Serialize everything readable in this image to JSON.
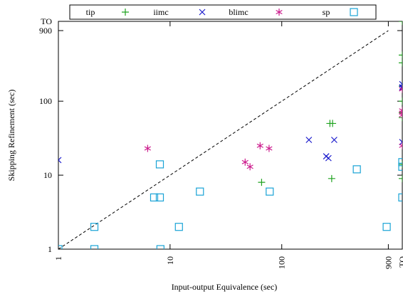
{
  "chart_data": {
    "type": "scatter",
    "xlabel": "Input-output Equivalence (sec)",
    "ylabel": "Skipping Refinement (sec)",
    "xscale": "log",
    "yscale": "log",
    "xlim": [
      1,
      1200
    ],
    "ylim": [
      1,
      1200
    ],
    "x_ticks": [
      {
        "value": 1,
        "label": "1"
      },
      {
        "value": 10,
        "label": "10"
      },
      {
        "value": 100,
        "label": "100"
      },
      {
        "value": 900,
        "label": "900"
      },
      {
        "value": 1200,
        "label": "TO"
      }
    ],
    "y_ticks": [
      {
        "value": 1,
        "label": "1"
      },
      {
        "value": 10,
        "label": "10"
      },
      {
        "value": 100,
        "label": "100"
      },
      {
        "value": 900,
        "label": "900"
      },
      {
        "value": 1200,
        "label": "TO"
      }
    ],
    "diagonal": {
      "style": "dashed",
      "from": [
        1,
        1
      ],
      "to": [
        900,
        900
      ]
    },
    "grid": false,
    "legend_position": "top",
    "series": [
      {
        "name": "tip",
        "marker": "plus",
        "color": "#1fa21f",
        "points": [
          [
            66,
            8
          ],
          [
            270,
            50
          ],
          [
            285,
            50
          ],
          [
            280,
            9
          ],
          [
            1200,
            1200
          ],
          [
            1200,
            420
          ],
          [
            1200,
            330
          ],
          [
            1200,
            160
          ],
          [
            1200,
            100
          ],
          [
            1200,
            70
          ],
          [
            1200,
            60
          ],
          [
            1200,
            14
          ],
          [
            1200,
            9
          ]
        ]
      },
      {
        "name": "iimc",
        "marker": "cross",
        "color": "#1a1acc",
        "points": [
          [
            1,
            16
          ],
          [
            175,
            30
          ],
          [
            250,
            18
          ],
          [
            262,
            17
          ],
          [
            295,
            30
          ],
          [
            1200,
            170
          ],
          [
            1200,
            155
          ],
          [
            1200,
            150
          ],
          [
            1200,
            28
          ]
        ]
      },
      {
        "name": "blimc",
        "marker": "star",
        "color": "#cc1a8c",
        "points": [
          [
            6.3,
            23
          ],
          [
            47,
            15
          ],
          [
            52,
            13
          ],
          [
            64,
            25
          ],
          [
            77,
            23
          ],
          [
            1200,
            145
          ],
          [
            1200,
            75
          ],
          [
            1200,
            70
          ],
          [
            1200,
            65
          ],
          [
            1200,
            25
          ]
        ]
      },
      {
        "name": "sp",
        "marker": "square",
        "color": "#19a3d6",
        "points": [
          [
            1,
            1
          ],
          [
            2.1,
            1
          ],
          [
            2.1,
            2
          ],
          [
            7.2,
            5
          ],
          [
            8.1,
            5
          ],
          [
            8.1,
            14
          ],
          [
            8.2,
            1
          ],
          [
            12,
            2
          ],
          [
            18.5,
            6
          ],
          [
            78,
            6
          ],
          [
            470,
            12
          ],
          [
            870,
            2
          ],
          [
            1200,
            15
          ],
          [
            1200,
            13
          ],
          [
            1200,
            5
          ]
        ]
      }
    ]
  }
}
